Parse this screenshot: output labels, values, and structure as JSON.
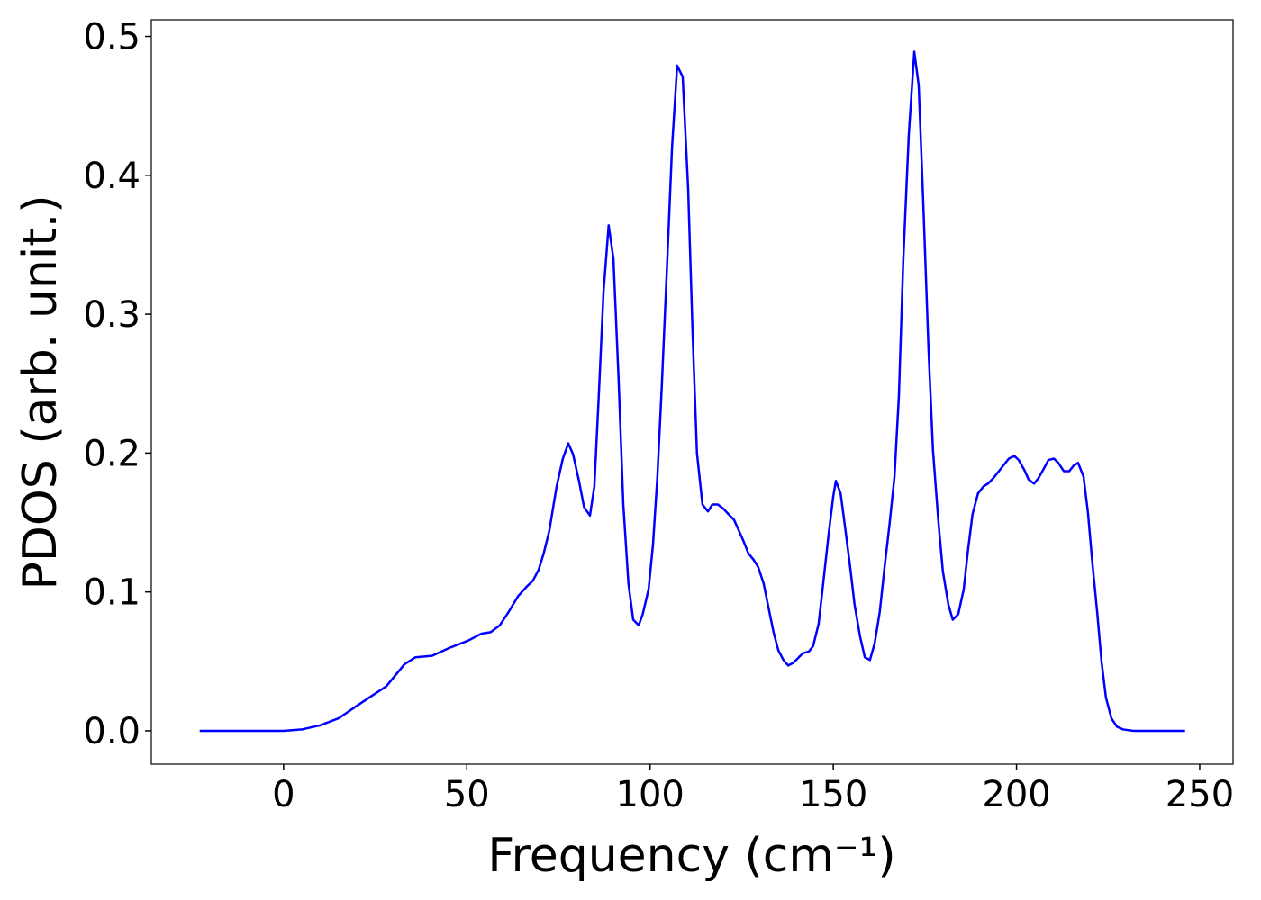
{
  "chart_data": {
    "type": "line",
    "xlabel": "Frequency (cm⁻¹)",
    "ylabel": "PDOS (arb. unit.)",
    "xlim": [
      -36.1,
      259.1
    ],
    "ylim": [
      -0.024,
      0.512
    ],
    "xticks": [
      0,
      50,
      100,
      150,
      200,
      250
    ],
    "yticks": [
      {
        "value": 0,
        "label": "0.0"
      },
      0.1,
      0.2,
      0.3,
      0.4,
      0.5
    ],
    "grid": false,
    "x": [
      -22.9,
      0,
      5,
      10,
      15,
      20,
      23.4,
      28,
      33,
      36,
      40.5,
      45.5,
      50.4,
      54,
      56.5,
      59,
      61.5,
      64,
      66.4,
      68,
      69.6,
      71,
      72.5,
      74.5,
      76.2,
      77.7,
      79,
      80.6,
      82,
      83.6,
      84.8,
      86,
      87.3,
      88.7,
      90,
      91.4,
      92.7,
      94.1,
      95.4,
      96.9,
      98,
      99.6,
      100.8,
      102,
      103.2,
      104.7,
      106,
      107.4,
      108.9,
      110.4,
      111.6,
      112.8,
      114.3,
      115.8,
      117,
      118.5,
      120,
      121.4,
      122.9,
      124.1,
      125.6,
      126.8,
      128.3,
      129.5,
      131,
      132.3,
      133.7,
      135,
      136.4,
      137.7,
      139.1,
      140.6,
      141.8,
      143.3,
      144.5,
      146,
      147.2,
      148.7,
      150,
      150.7,
      152,
      153.2,
      154.6,
      155.8,
      157.3,
      158.6,
      160,
      161.3,
      162.7,
      164,
      165.4,
      166.7,
      167.9,
      169.1,
      170.6,
      172.1,
      173.3,
      174.5,
      176,
      177.2,
      178.7,
      179.9,
      181.4,
      182.6,
      184.1,
      185.6,
      186.8,
      188,
      189.5,
      191,
      192.2,
      193.7,
      194.9,
      196.4,
      197.9,
      199.4,
      200.6,
      202.1,
      203.3,
      204.8,
      206,
      207.5,
      208.7,
      210.2,
      211.4,
      212.9,
      214.4,
      215.6,
      216.8,
      218.3,
      219.5,
      220.7,
      222,
      223.2,
      224.4,
      225.9,
      227.4,
      229.1,
      232,
      246
    ],
    "series": [
      {
        "name": "PDOS",
        "color": "#0000ff",
        "values": [
          0,
          0,
          0.001,
          0.004,
          0.009,
          0.018,
          0.024,
          0.032,
          0.048,
          0.053,
          0.054,
          0.06,
          0.065,
          0.07,
          0.071,
          0.076,
          0.086,
          0.097,
          0.104,
          0.108,
          0.116,
          0.128,
          0.144,
          0.176,
          0.196,
          0.207,
          0.199,
          0.18,
          0.161,
          0.155,
          0.176,
          0.241,
          0.316,
          0.364,
          0.34,
          0.254,
          0.163,
          0.106,
          0.08,
          0.076,
          0.084,
          0.102,
          0.134,
          0.183,
          0.248,
          0.339,
          0.42,
          0.479,
          0.471,
          0.39,
          0.287,
          0.2,
          0.163,
          0.158,
          0.163,
          0.163,
          0.16,
          0.156,
          0.152,
          0.145,
          0.136,
          0.128,
          0.123,
          0.118,
          0.106,
          0.089,
          0.071,
          0.058,
          0.051,
          0.047,
          0.049,
          0.053,
          0.056,
          0.057,
          0.061,
          0.077,
          0.105,
          0.141,
          0.169,
          0.18,
          0.171,
          0.147,
          0.118,
          0.091,
          0.068,
          0.053,
          0.051,
          0.063,
          0.086,
          0.118,
          0.15,
          0.183,
          0.241,
          0.339,
          0.429,
          0.489,
          0.465,
          0.384,
          0.274,
          0.202,
          0.15,
          0.115,
          0.091,
          0.08,
          0.084,
          0.102,
          0.131,
          0.156,
          0.171,
          0.176,
          0.178,
          0.182,
          0.186,
          0.191,
          0.196,
          0.198,
          0.195,
          0.188,
          0.181,
          0.178,
          0.182,
          0.189,
          0.195,
          0.196,
          0.193,
          0.187,
          0.187,
          0.191,
          0.193,
          0.183,
          0.157,
          0.121,
          0.086,
          0.05,
          0.024,
          0.009,
          0.003,
          0.001,
          0,
          0
        ]
      }
    ]
  }
}
